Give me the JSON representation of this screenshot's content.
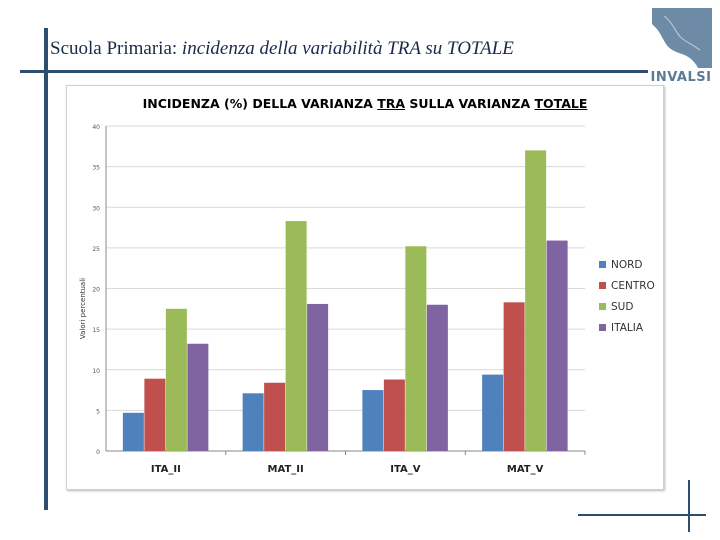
{
  "slide": {
    "title_prefix": "Scuola Primaria: ",
    "title_italic": "incidenza della variabilità TRA su TOTALE"
  },
  "logo": {
    "text": "INVALSI"
  },
  "chart_data": {
    "type": "bar",
    "title_parts": [
      "INCIDENZA (%) DELLA VARIANZA ",
      "TRA",
      " SULLA VARIANZA ",
      "TOTALE"
    ],
    "ylabel": "Valori percentuali",
    "xlabel": "",
    "ylim": [
      0,
      40
    ],
    "yticks": [
      0,
      5,
      10,
      15,
      20,
      25,
      30,
      35,
      40
    ],
    "ytick_labels": [
      "0",
      "5",
      "10",
      "15",
      "20",
      "25",
      "30",
      "35",
      "40"
    ],
    "grid": true,
    "legend_position": "right",
    "categories": [
      "ITA_II",
      "MAT_II",
      "ITA_V",
      "MAT_V"
    ],
    "series": [
      {
        "name": "NORD",
        "color": "#4f81bd",
        "values": [
          4.7,
          7.1,
          7.5,
          9.4
        ]
      },
      {
        "name": "CENTRO",
        "color": "#c0504d",
        "values": [
          8.9,
          8.4,
          8.8,
          18.3
        ]
      },
      {
        "name": "SUD",
        "color": "#9bbb59",
        "values": [
          17.5,
          28.3,
          25.2,
          37.0
        ]
      },
      {
        "name": "ITALIA",
        "color": "#8064a2",
        "values": [
          13.2,
          18.1,
          18.0,
          25.9
        ]
      }
    ]
  }
}
